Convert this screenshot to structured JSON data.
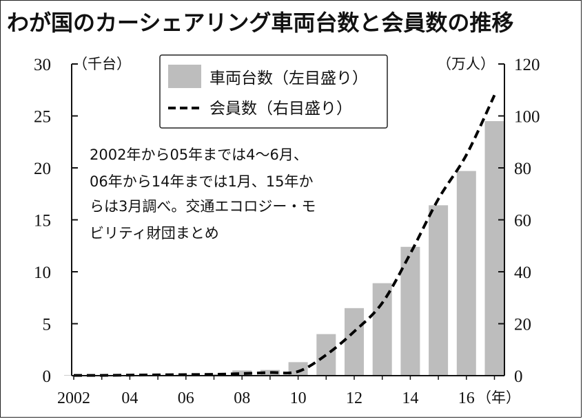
{
  "chart_data": {
    "type": "bar+line",
    "title": "わが国のカーシェアリング車両台数と会員数の推移",
    "left_axis": {
      "unit_label": "（千台）",
      "ticks": [
        0,
        5,
        10,
        15,
        20,
        25,
        30
      ],
      "range": [
        0,
        30
      ]
    },
    "right_axis": {
      "unit_label": "（万人）",
      "ticks": [
        0,
        20,
        40,
        60,
        80,
        100,
        120
      ],
      "range": [
        0,
        120
      ]
    },
    "x_axis": {
      "tick_labels": [
        "2002",
        "04",
        "06",
        "08",
        "10",
        "12",
        "14",
        "16"
      ],
      "unit_label": "（年）"
    },
    "x": [
      2002,
      2003,
      2004,
      2005,
      2006,
      2007,
      2008,
      2009,
      2010,
      2011,
      2012,
      2013,
      2014,
      2015,
      2016,
      2017
    ],
    "series": [
      {
        "name": "車両台数（左目盛り）",
        "kind": "bar",
        "axis": "left",
        "color": "#bdbdbd",
        "values": [
          0.05,
          0.05,
          0.05,
          0.08,
          0.1,
          0.15,
          0.5,
          0.55,
          1.3,
          4.0,
          6.5,
          8.9,
          12.4,
          16.4,
          19.7,
          24.5
        ]
      },
      {
        "name": "会員数（右目盛り）",
        "kind": "line",
        "axis": "right",
        "style": "dashed",
        "color": "#000000",
        "values": [
          0.1,
          0.1,
          0.2,
          0.3,
          0.4,
          0.5,
          0.8,
          1.2,
          1.6,
          8.0,
          17.0,
          28.0,
          47.0,
          68.0,
          85.0,
          108.0
        ]
      }
    ],
    "legend_placement": "top-center",
    "annotation": [
      "2002年から05年までは4〜6月、",
      "06年から14年までは1月、15年か",
      "らは3月調べ。交通エコロジー・モ",
      "ビリティ財団まとめ"
    ]
  }
}
